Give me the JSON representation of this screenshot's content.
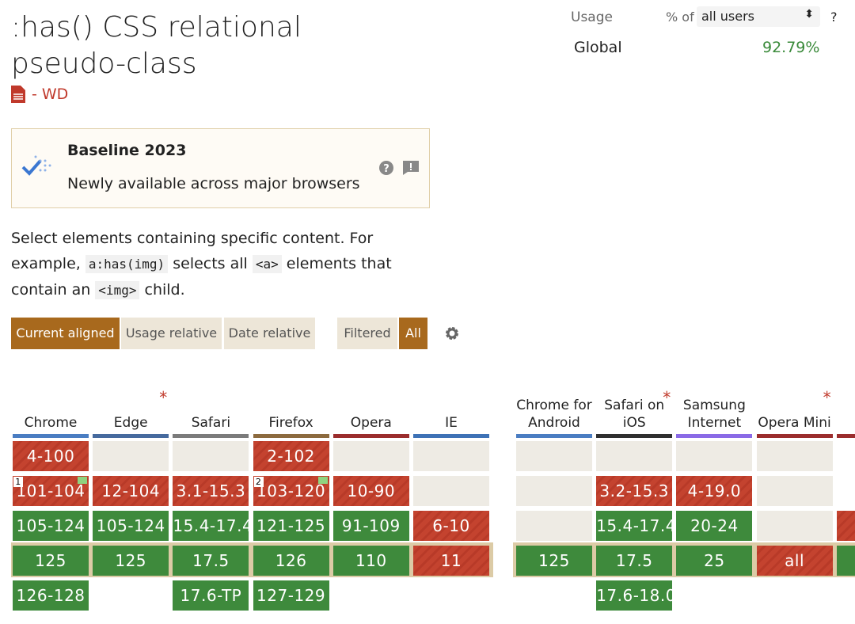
{
  "header": {
    "title": ":has() CSS relational pseudo-class",
    "status": "- WD"
  },
  "usage": {
    "label": "Usage",
    "percent_of": "% of",
    "select": "all users",
    "help": "?",
    "region": "Global",
    "value": "92.79%"
  },
  "baseline": {
    "title": "Baseline 2023",
    "text": "Newly available across major browsers"
  },
  "description": [
    "Select elements containing specific content. For example, ",
    "a:has(img)",
    " selects all ",
    "<a>",
    " elements that contain an ",
    "<img>",
    " child."
  ],
  "tabs": [
    "Current aligned",
    "Usage relative",
    "Date relative"
  ],
  "filters": [
    "Filtered",
    "All"
  ],
  "desktop": [
    {
      "name": "Chrome",
      "color": "#4a7dc2",
      "cells": [
        {
          "label": "4-100",
          "color": "red"
        },
        {
          "label": "101-104",
          "color": "red",
          "note": "1",
          "flag": true
        },
        {
          "label": "105-124",
          "color": "green"
        },
        {
          "label": "125",
          "color": "green"
        },
        {
          "label": "126-128",
          "color": "green"
        }
      ]
    },
    {
      "name": "Edge",
      "note": "*",
      "color": "#466a9e",
      "cells": [
        null,
        {
          "label": "12-104",
          "color": "red"
        },
        {
          "label": "105-124",
          "color": "green"
        },
        {
          "label": "125",
          "color": "green"
        },
        null
      ]
    },
    {
      "name": "Safari",
      "color": "#7b7b7b",
      "cells": [
        null,
        {
          "label": "3.1-15.3",
          "color": "red"
        },
        {
          "label": "15.4-17.4",
          "color": "green"
        },
        {
          "label": "17.5",
          "color": "green"
        },
        {
          "label": "17.6-TP",
          "color": "green"
        }
      ]
    },
    {
      "name": "Firefox",
      "color": "#8c6a3e",
      "cells": [
        {
          "label": "2-102",
          "color": "red"
        },
        {
          "label": "103-120",
          "color": "red",
          "note": "2",
          "flag": true
        },
        {
          "label": "121-125",
          "color": "green"
        },
        {
          "label": "126",
          "color": "green"
        },
        {
          "label": "127-129",
          "color": "green"
        }
      ]
    },
    {
      "name": "Opera",
      "color": "#9b2d2d",
      "cells": [
        null,
        {
          "label": "10-90",
          "color": "red"
        },
        {
          "label": "91-109",
          "color": "green"
        },
        {
          "label": "110",
          "color": "green"
        },
        null
      ]
    },
    {
      "name": "IE",
      "color": "#3e72b6",
      "cells": [
        null,
        null,
        {
          "label": "6-10",
          "color": "red"
        },
        {
          "label": "11",
          "color": "red"
        },
        null
      ]
    }
  ],
  "mobile": [
    {
      "name": "Chrome for Android",
      "color": "#4a7dc2",
      "cells": [
        null,
        null,
        null,
        {
          "label": "125",
          "color": "green"
        },
        null
      ]
    },
    {
      "name": "Safari on iOS",
      "note": "*",
      "color": "#2f2f2f",
      "cells": [
        null,
        {
          "label": "3.2-15.3",
          "color": "red"
        },
        {
          "label": "15.4-17.4",
          "color": "green"
        },
        {
          "label": "17.5",
          "color": "green"
        },
        {
          "label": "17.6-18.0",
          "color": "green"
        }
      ]
    },
    {
      "name": "Samsung Internet",
      "color": "#8a6ae6",
      "cells": [
        null,
        {
          "label": "4-19.0",
          "color": "red"
        },
        {
          "label": "20-24",
          "color": "green"
        },
        {
          "label": "25",
          "color": "green"
        },
        null
      ]
    },
    {
      "name": "Opera Mini",
      "note": "*",
      "color": "#9b2d2d",
      "cells": [
        null,
        null,
        null,
        {
          "label": "all",
          "color": "red"
        },
        null
      ]
    }
  ]
}
